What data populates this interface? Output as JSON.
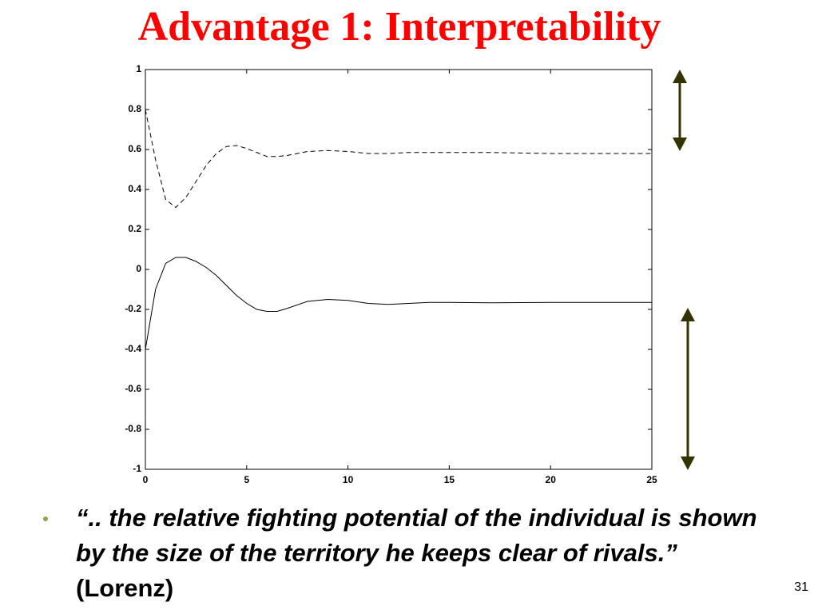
{
  "slide": {
    "title": "Advantage 1: Interpretability",
    "bullet": {
      "quote": "“.. the relative fighting potential of the individual is shown by the size of the territory he keeps clear of rivals.”",
      "source": "(Lorenz)"
    },
    "page_number": "31"
  },
  "chart_data": {
    "type": "line",
    "x": [
      0,
      0.5,
      1,
      1.5,
      2,
      2.5,
      3,
      3.5,
      4,
      4.5,
      5,
      5.5,
      6,
      6.5,
      7,
      8,
      9,
      10,
      11,
      12,
      13,
      14,
      15,
      17,
      20,
      22,
      25
    ],
    "series": [
      {
        "color": "#000000",
        "dash": true,
        "values": [
          0.8,
          0.55,
          0.35,
          0.31,
          0.36,
          0.44,
          0.52,
          0.58,
          0.615,
          0.62,
          0.605,
          0.585,
          0.565,
          0.565,
          0.57,
          0.59,
          0.595,
          0.59,
          0.58,
          0.58,
          0.585,
          0.585,
          0.585,
          0.585,
          0.58,
          0.58,
          0.58
        ]
      },
      {
        "color": "#000000",
        "dash": false,
        "values": [
          -0.4,
          -0.1,
          0.03,
          0.06,
          0.06,
          0.04,
          0.01,
          -0.03,
          -0.08,
          -0.13,
          -0.17,
          -0.2,
          -0.21,
          -0.21,
          -0.195,
          -0.16,
          -0.15,
          -0.155,
          -0.17,
          -0.175,
          -0.17,
          -0.165,
          -0.165,
          -0.167,
          -0.165,
          -0.165,
          -0.165
        ]
      }
    ],
    "xlim": [
      0,
      25
    ],
    "ylim": [
      -1,
      1
    ],
    "xticks": [
      0,
      5,
      10,
      15,
      20,
      25
    ],
    "yticks": [
      -1,
      -0.8,
      -0.6,
      -0.4,
      -0.2,
      0,
      0.2,
      0.4,
      0.6,
      0.8,
      1
    ]
  }
}
